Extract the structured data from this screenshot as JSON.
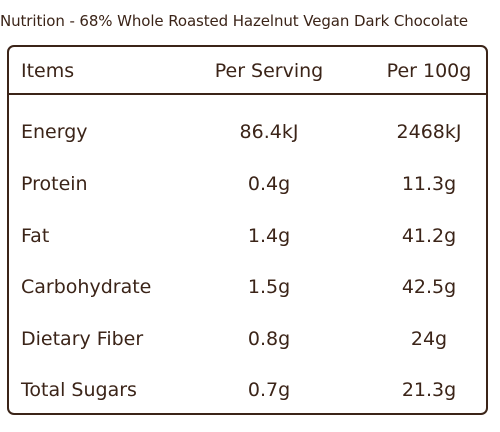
{
  "title": "Nutrition - 68% Whole Roasted Hazelnut Vegan Dark Chocolate",
  "headers": {
    "items": "Items",
    "per_serving": "Per Serving",
    "per_100g": "Per 100g"
  },
  "rows": [
    {
      "name": "Energy",
      "per_serving": "86.4kJ",
      "per_100g": "2468kJ"
    },
    {
      "name": "Protein",
      "per_serving": "0.4g",
      "per_100g": "11.3g"
    },
    {
      "name": "Fat",
      "per_serving": "1.4g",
      "per_100g": "41.2g"
    },
    {
      "name": "Carbohydrate",
      "per_serving": "1.5g",
      "per_100g": "42.5g"
    },
    {
      "name": "Dietary Fiber",
      "per_serving": "0.8g",
      "per_100g": "24g"
    },
    {
      "name": "Total Sugars",
      "per_serving": "0.7g",
      "per_100g": "21.3g"
    }
  ]
}
